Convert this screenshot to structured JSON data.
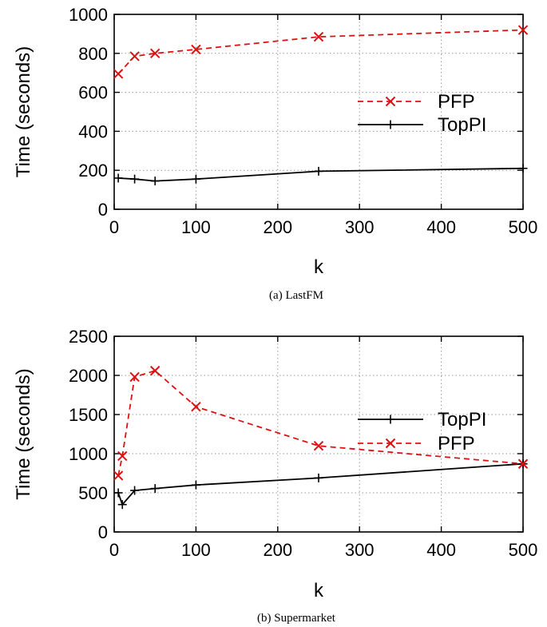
{
  "chart_data": [
    {
      "type": "line",
      "caption": "(a) LastFM",
      "xlabel": "k",
      "ylabel": "Time (seconds)",
      "xlim": [
        0,
        500
      ],
      "ylim": [
        0,
        1000
      ],
      "xticks": [
        0,
        100,
        200,
        300,
        400,
        500
      ],
      "yticks": [
        0,
        200,
        400,
        600,
        800,
        1000
      ],
      "grid": true,
      "legend_position": "center-right",
      "series": [
        {
          "name": "PFP",
          "color": "#dd1111",
          "line_style": "dashed",
          "marker": "x",
          "x": [
            5,
            25,
            50,
            100,
            250,
            500
          ],
          "y": [
            695,
            785,
            800,
            820,
            885,
            920
          ]
        },
        {
          "name": "TopPI",
          "color": "#000000",
          "line_style": "solid",
          "marker": "plus",
          "x": [
            5,
            25,
            50,
            100,
            250,
            500
          ],
          "y": [
            160,
            155,
            145,
            155,
            195,
            210
          ]
        }
      ]
    },
    {
      "type": "line",
      "caption": "(b) Supermarket",
      "xlabel": "k",
      "ylabel": "Time (seconds)",
      "xlim": [
        0,
        500
      ],
      "ylim": [
        0,
        2500
      ],
      "xticks": [
        0,
        100,
        200,
        300,
        400,
        500
      ],
      "yticks": [
        0,
        500,
        1000,
        1500,
        2000,
        2500
      ],
      "grid": true,
      "legend_position": "center-right",
      "series": [
        {
          "name": "TopPI",
          "color": "#000000",
          "line_style": "solid",
          "marker": "plus",
          "x": [
            5,
            10,
            25,
            50,
            100,
            250,
            500
          ],
          "y": [
            500,
            350,
            530,
            555,
            600,
            690,
            870
          ]
        },
        {
          "name": "PFP",
          "color": "#dd1111",
          "line_style": "dashed",
          "marker": "x",
          "x": [
            5,
            10,
            25,
            50,
            100,
            250,
            500
          ],
          "y": [
            720,
            970,
            1980,
            2060,
            1600,
            1100,
            870
          ]
        }
      ]
    }
  ]
}
